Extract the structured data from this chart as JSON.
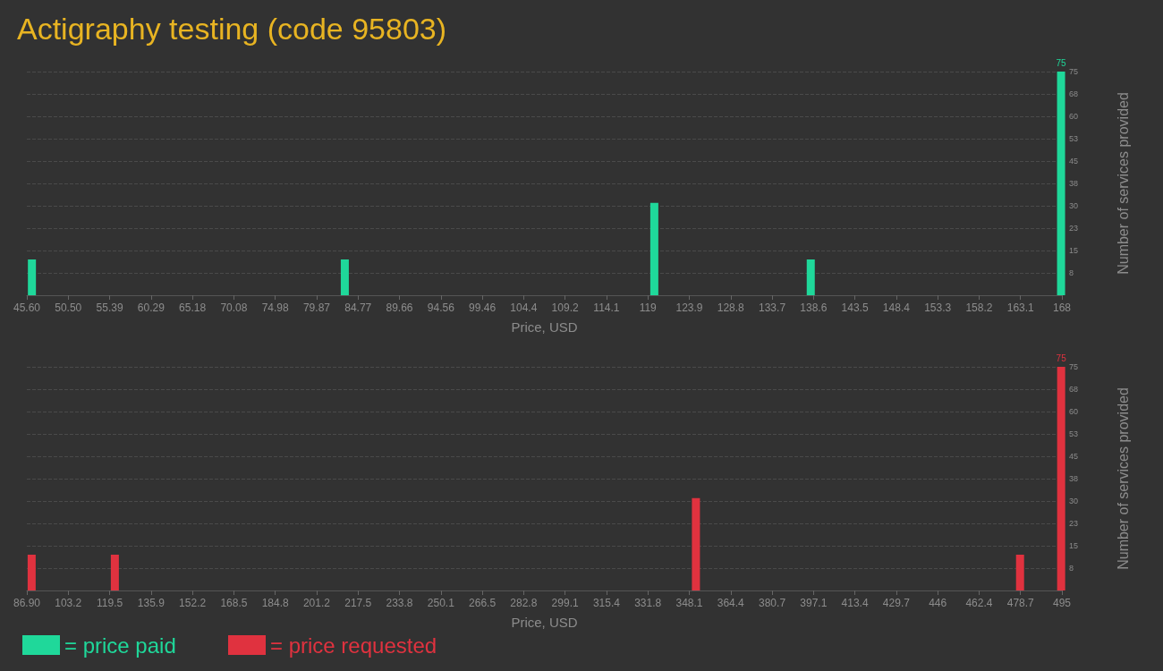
{
  "chart_data": [
    {
      "type": "bar",
      "title": "Actigraphy testing (code 95803)",
      "xlabel": "Price, USD",
      "ylabel": "Number of services provided",
      "x": [
        46.2,
        83.2,
        119.8,
        138.3,
        167.9
      ],
      "series": [
        {
          "name": "= price paid",
          "color": "#1fd89a",
          "values": [
            12,
            12,
            31,
            12,
            75
          ],
          "value_labels": [
            null,
            null,
            null,
            null,
            "75"
          ]
        }
      ],
      "xlim": [
        45.6,
        168
      ],
      "xticks": [
        {
          "value": 45.6,
          "label": "45.60"
        },
        {
          "value": 50.496,
          "label": "50.50"
        },
        {
          "value": 55.392,
          "label": "55.39"
        },
        {
          "value": 60.288,
          "label": "60.29"
        },
        {
          "value": 65.184,
          "label": "65.18"
        },
        70.08,
        {
          "value": 74.976,
          "label": "74.98"
        },
        {
          "value": 79.872,
          "label": "79.87"
        },
        {
          "value": 84.768,
          "label": "84.77"
        },
        {
          "value": 89.664,
          "label": "89.66"
        },
        94.56,
        {
          "value": 99.456,
          "label": "99.46"
        },
        {
          "value": 104.352,
          "label": "104.4"
        },
        {
          "value": 109.248,
          "label": "109.2"
        },
        {
          "value": 114.144,
          "label": "114.1"
        },
        {
          "value": 119.04,
          "label": "119"
        },
        {
          "value": 123.936,
          "label": "123.9"
        },
        {
          "value": 128.832,
          "label": "128.8"
        },
        {
          "value": 133.728,
          "label": "133.7"
        },
        {
          "value": 138.624,
          "label": "138.6"
        },
        {
          "value": 143.52,
          "label": "143.5"
        },
        {
          "value": 148.416,
          "label": "148.4"
        },
        {
          "value": 153.312,
          "label": "153.3"
        },
        {
          "value": 158.208,
          "label": "158.2"
        },
        {
          "value": 163.104,
          "label": "163.1"
        },
        168
      ],
      "ylim": [
        0,
        75
      ],
      "yticks": [
        {
          "value": 7.5,
          "label": "8"
        },
        15,
        {
          "value": 22.5,
          "label": "23"
        },
        30,
        {
          "value": 37.5,
          "label": "38"
        },
        45,
        {
          "value": 52.5,
          "label": "53"
        },
        60,
        {
          "value": 67.5,
          "label": "68"
        },
        75
      ],
      "grid": "y",
      "legend": "bottom left"
    },
    {
      "type": "bar",
      "xlabel": "Price, USD",
      "ylabel": "Number of services provided",
      "x": [
        88.8,
        121.6,
        350.7,
        478.5,
        494.7
      ],
      "series": [
        {
          "name": "= price requested",
          "color": "#e0323f",
          "values": [
            12,
            12,
            31,
            12,
            75
          ],
          "value_labels": [
            null,
            null,
            null,
            null,
            "75"
          ]
        }
      ],
      "xlim": [
        86.9,
        495
      ],
      "xticks": [
        {
          "value": 86.9,
          "label": "86.90"
        },
        {
          "value": 103.224,
          "label": "103.2"
        },
        {
          "value": 119.548,
          "label": "119.5"
        },
        {
          "value": 135.872,
          "label": "135.9"
        },
        {
          "value": 152.196,
          "label": "152.2"
        },
        {
          "value": 168.52,
          "label": "168.5"
        },
        {
          "value": 184.844,
          "label": "184.8"
        },
        {
          "value": 201.168,
          "label": "201.2"
        },
        {
          "value": 217.492,
          "label": "217.5"
        },
        {
          "value": 233.816,
          "label": "233.8"
        },
        {
          "value": 250.14,
          "label": "250.1"
        },
        {
          "value": 266.464,
          "label": "266.5"
        },
        {
          "value": 282.788,
          "label": "282.8"
        },
        {
          "value": 299.112,
          "label": "299.1"
        },
        {
          "value": 315.436,
          "label": "315.4"
        },
        {
          "value": 331.76,
          "label": "331.8"
        },
        {
          "value": 348.084,
          "label": "348.1"
        },
        {
          "value": 364.408,
          "label": "364.4"
        },
        {
          "value": 380.732,
          "label": "380.7"
        },
        {
          "value": 397.056,
          "label": "397.1"
        },
        {
          "value": 413.38,
          "label": "413.4"
        },
        {
          "value": 429.704,
          "label": "429.7"
        },
        {
          "value": 446.028,
          "label": "446"
        },
        {
          "value": 462.352,
          "label": "462.4"
        },
        {
          "value": 478.676,
          "label": "478.7"
        },
        495
      ],
      "ylim": [
        0,
        75
      ],
      "yticks": [
        {
          "value": 7.5,
          "label": "8"
        },
        15,
        {
          "value": 22.5,
          "label": "23"
        },
        30,
        {
          "value": 37.5,
          "label": "38"
        },
        45,
        {
          "value": 52.5,
          "label": "53"
        },
        60,
        {
          "value": 67.5,
          "label": "68"
        },
        75
      ],
      "grid": "y",
      "legend": "bottom left"
    }
  ]
}
